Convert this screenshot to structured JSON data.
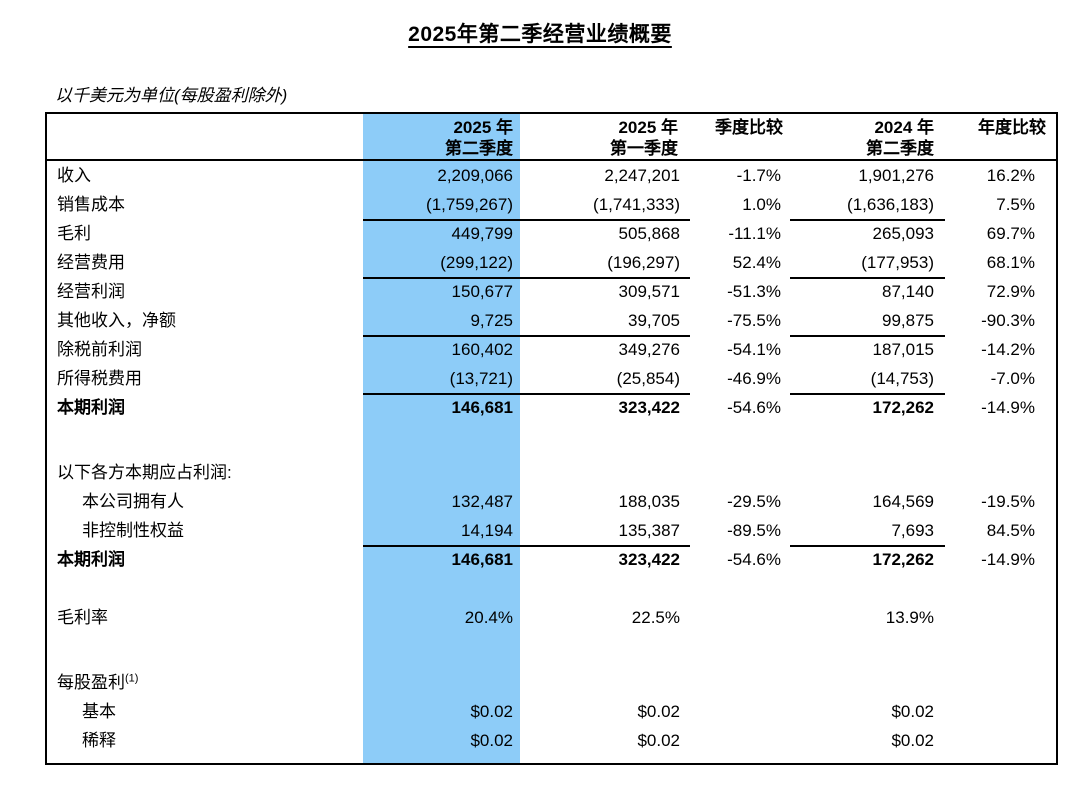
{
  "page": {
    "title": "2025年第二季经营业绩概要",
    "unit_note": "以千美元为单位(每股盈利除外)"
  },
  "colors": {
    "highlight_column": "#8DCCF8",
    "text": "#000000",
    "border": "#000000"
  },
  "table": {
    "columns": [
      {
        "line1": "2025 年",
        "line2": "第二季度",
        "highlighted": true
      },
      {
        "line1": "2025 年",
        "line2": "第一季度",
        "highlighted": false
      },
      {
        "line1": "季度比较",
        "line2": "",
        "highlighted": false
      },
      {
        "line1": "2024 年",
        "line2": "第二季度",
        "highlighted": false
      },
      {
        "line1": "年度比较",
        "line2": "",
        "highlighted": false
      }
    ],
    "rows": [
      {
        "label": "收入",
        "v1": "2,209,066",
        "v2": "2,247,201",
        "v3": "-1.7%",
        "v4": "1,901,276",
        "v5": "16.2%"
      },
      {
        "label": "销售成本",
        "v1": "(1,759,267)",
        "v2": "(1,741,333)",
        "v3": "1.0%",
        "v4": "(1,636,183)",
        "v5": "7.5%"
      },
      {
        "label": "毛利",
        "v1": "449,799",
        "v2": "505,868",
        "v3": "-11.1%",
        "v4": "265,093",
        "v5": "69.7%"
      },
      {
        "label": "经营费用",
        "v1": "(299,122)",
        "v2": "(196,297)",
        "v3": "52.4%",
        "v4": "(177,953)",
        "v5": "68.1%"
      },
      {
        "label": "经营利润",
        "v1": "150,677",
        "v2": "309,571",
        "v3": "-51.3%",
        "v4": "87,140",
        "v5": "72.9%"
      },
      {
        "label": "其他收入，净额",
        "v1": "9,725",
        "v2": "39,705",
        "v3": "-75.5%",
        "v4": "99,875",
        "v5": "-90.3%"
      },
      {
        "label": "除税前利润",
        "v1": "160,402",
        "v2": "349,276",
        "v3": "-54.1%",
        "v4": "187,015",
        "v5": "-14.2%"
      },
      {
        "label": "所得税费用",
        "v1": "(13,721)",
        "v2": "(25,854)",
        "v3": "-46.9%",
        "v4": "(14,753)",
        "v5": "-7.0%"
      },
      {
        "label": "本期利润",
        "v1": "146,681",
        "v2": "323,422",
        "v3": "-54.6%",
        "v4": "172,262",
        "v5": "-14.9%"
      },
      {
        "label": "以下各方本期应占利润:",
        "v1": "",
        "v2": "",
        "v3": "",
        "v4": "",
        "v5": ""
      },
      {
        "label": "本公司拥有人",
        "v1": "132,487",
        "v2": "188,035",
        "v3": "-29.5%",
        "v4": "164,569",
        "v5": "-19.5%"
      },
      {
        "label": "非控制性权益",
        "v1": "14,194",
        "v2": "135,387",
        "v3": "-89.5%",
        "v4": "7,693",
        "v5": "84.5%"
      },
      {
        "label": "本期利润",
        "v1": "146,681",
        "v2": "323,422",
        "v3": "-54.6%",
        "v4": "172,262",
        "v5": "-14.9%"
      },
      {
        "label": "毛利率",
        "v1": "20.4%",
        "v2": "22.5%",
        "v3": "",
        "v4": "13.9%",
        "v5": ""
      },
      {
        "label": "每股盈利",
        "sup": "(1)",
        "v1": "",
        "v2": "",
        "v3": "",
        "v4": "",
        "v5": ""
      },
      {
        "label": "基本",
        "v1": "$0.02",
        "v2": "$0.02",
        "v3": "",
        "v4": "$0.02",
        "v5": ""
      },
      {
        "label": "稀释",
        "v1": "$0.02",
        "v2": "$0.02",
        "v3": "",
        "v4": "$0.02",
        "v5": ""
      }
    ]
  }
}
